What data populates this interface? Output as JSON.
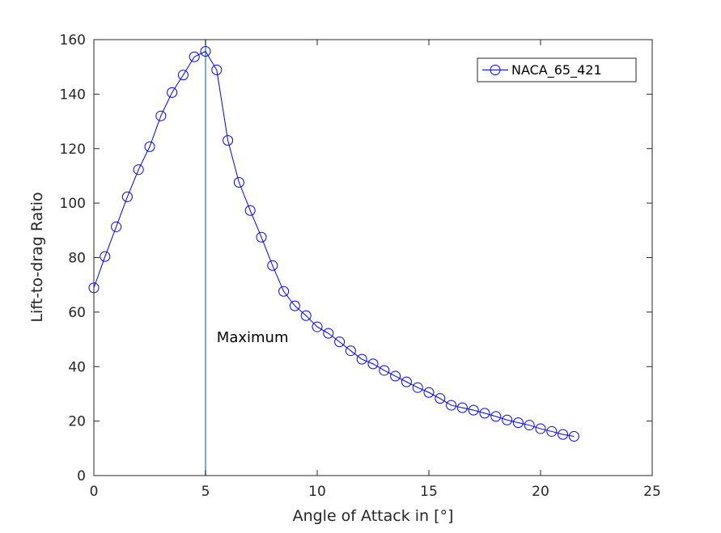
{
  "chart_data": {
    "type": "line",
    "xlabel": "Angle of Attack in [°]",
    "ylabel": "Lift-to-drag Ratio",
    "xlim": [
      0,
      25
    ],
    "ylim": [
      0,
      160
    ],
    "xticks": [
      0,
      5,
      10,
      15,
      20,
      25
    ],
    "yticks": [
      0,
      20,
      40,
      60,
      80,
      100,
      120,
      140,
      160
    ],
    "grid": false,
    "legend_position": "top-right",
    "series": [
      {
        "name": "NACA_65_421",
        "color": "#0000ff",
        "marker": "circle",
        "x": [
          0,
          0.5,
          1,
          1.5,
          2,
          2.5,
          3,
          3.5,
          4,
          4.5,
          5,
          5.5,
          6,
          6.5,
          7,
          7.5,
          8,
          8.5,
          9,
          9.5,
          10,
          10.5,
          11,
          11.5,
          12,
          12.5,
          13,
          13.5,
          14,
          14.5,
          15,
          15.5,
          16,
          16.5,
          17,
          17.5,
          18,
          18.5,
          19,
          19.5,
          20,
          20.5,
          21,
          21.5
        ],
        "y": [
          68.9,
          80.4,
          91.3,
          102.3,
          112.3,
          120.7,
          132.0,
          140.6,
          147.0,
          153.7,
          155.7,
          148.9,
          123.0,
          107.6,
          97.3,
          87.5,
          77.1,
          67.6,
          62.3,
          58.7,
          54.6,
          52.2,
          49.1,
          45.8,
          42.7,
          41.0,
          38.6,
          36.5,
          34.4,
          32.3,
          30.5,
          28.3,
          25.8,
          24.9,
          24.0,
          22.9,
          21.7,
          20.4,
          19.4,
          18.5,
          17.2,
          16.2,
          15.1,
          14.4
        ]
      }
    ],
    "annotations": [
      {
        "text": "Maximum",
        "x": 5.5,
        "y": 49
      }
    ],
    "vline": {
      "x": 5,
      "color": "#4a90c8"
    }
  }
}
